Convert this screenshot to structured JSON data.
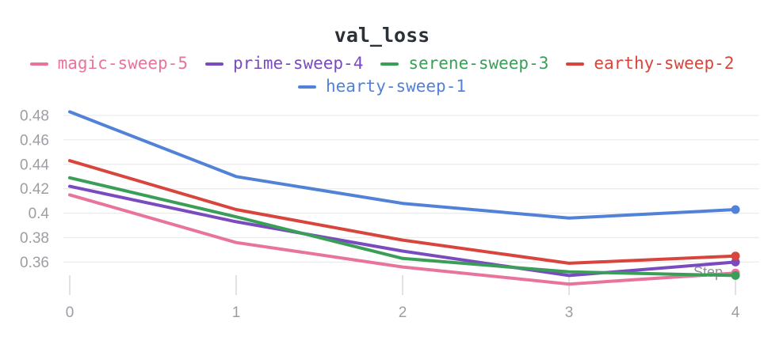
{
  "title": "val_loss",
  "chart_data": {
    "type": "line",
    "title": "val_loss",
    "xlabel": "Step",
    "ylabel": "",
    "x": [
      0,
      1,
      2,
      3,
      4
    ],
    "x_ticks": [
      {
        "value": 0,
        "label": "0"
      },
      {
        "value": 1,
        "label": "1"
      },
      {
        "value": 2,
        "label": "2"
      },
      {
        "value": 3,
        "label": "3"
      },
      {
        "value": 4,
        "label": "4"
      }
    ],
    "y_ticks": [
      {
        "value": 0.48,
        "label": "0.48"
      },
      {
        "value": 0.46,
        "label": "0.46"
      },
      {
        "value": 0.44,
        "label": "0.44"
      },
      {
        "value": 0.42,
        "label": "0.42"
      },
      {
        "value": 0.4,
        "label": "0.4"
      },
      {
        "value": 0.38,
        "label": "0.38"
      },
      {
        "value": 0.36,
        "label": "0.36"
      }
    ],
    "ylim": [
      0.345,
      0.49
    ],
    "x_range": [
      0,
      4
    ],
    "grid": "horizontal",
    "legend_position": "top",
    "end_markers": true,
    "series": [
      {
        "name": "magic-sweep-5",
        "color": "#e8739c",
        "values": [
          0.415,
          0.376,
          0.356,
          0.342,
          0.351
        ]
      },
      {
        "name": "prime-sweep-4",
        "color": "#7a4bbe",
        "values": [
          0.422,
          0.393,
          0.369,
          0.349,
          0.36
        ]
      },
      {
        "name": "serene-sweep-3",
        "color": "#3b9e58",
        "values": [
          0.429,
          0.397,
          0.363,
          0.352,
          0.349
        ]
      },
      {
        "name": "earthy-sweep-2",
        "color": "#d8453c",
        "values": [
          0.443,
          0.403,
          0.378,
          0.359,
          0.365
        ]
      },
      {
        "name": "hearty-sweep-1",
        "color": "#5282d8",
        "values": [
          0.483,
          0.43,
          0.408,
          0.396,
          0.403
        ]
      }
    ],
    "legend_rows": [
      [
        "magic-sweep-5",
        "prime-sweep-4",
        "serene-sweep-3",
        "earthy-sweep-2"
      ],
      [
        "hearty-sweep-1"
      ]
    ],
    "colors": {
      "title_text": "#2b3137",
      "axis_label_text": "#9b9ea3",
      "step_label_text": "#8f9296",
      "gridline": "#ececee",
      "tick_mark": "#e2e2e5"
    }
  }
}
